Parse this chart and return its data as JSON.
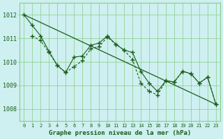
{
  "title": "Graphe pression niveau de la mer (hPa)",
  "bg_color": "#cef0f0",
  "plot_bg_color": "#cef0f0",
  "grid_color": "#88cc88",
  "line_color": "#1a5c1a",
  "ylim": [
    1007.5,
    1012.5
  ],
  "xlim": [
    -0.5,
    23.5
  ],
  "yticks": [
    1008,
    1009,
    1010,
    1011,
    1012
  ],
  "xticks": [
    0,
    1,
    2,
    3,
    4,
    5,
    6,
    7,
    8,
    9,
    10,
    11,
    12,
    13,
    14,
    15,
    16,
    17,
    18,
    19,
    20,
    21,
    22,
    23
  ],
  "series1_x": [
    0,
    1,
    2,
    3,
    4,
    5,
    6,
    7,
    8,
    9,
    10,
    11,
    12,
    13,
    14,
    15,
    16,
    17,
    18,
    19,
    20,
    21,
    22,
    23
  ],
  "series1_y": [
    1012.0,
    1011.55,
    1011.1,
    1010.45,
    1009.85,
    1009.55,
    1010.2,
    1010.25,
    1010.7,
    1010.8,
    1011.1,
    1010.75,
    1010.5,
    1010.4,
    1009.6,
    1009.1,
    1008.75,
    1009.2,
    1009.15,
    1009.6,
    1009.5,
    1009.1,
    1009.35,
    1008.2
  ],
  "series2_x": [
    1,
    2,
    3,
    4,
    5,
    6,
    7,
    8,
    9,
    10,
    11,
    12,
    13,
    14,
    15,
    16,
    17,
    18,
    19,
    20,
    21,
    22,
    23
  ],
  "series2_y": [
    1011.1,
    1010.9,
    1010.4,
    1009.85,
    1009.55,
    1009.8,
    1010.05,
    1010.55,
    1010.65,
    1011.05,
    1010.75,
    1010.5,
    1010.1,
    1009.1,
    1008.75,
    1008.6,
    1009.2,
    1009.15,
    1009.6,
    1009.5,
    1009.1,
    1009.35,
    1008.2
  ],
  "trend_x": [
    0,
    23
  ],
  "trend_y": [
    1012.0,
    1008.2
  ]
}
